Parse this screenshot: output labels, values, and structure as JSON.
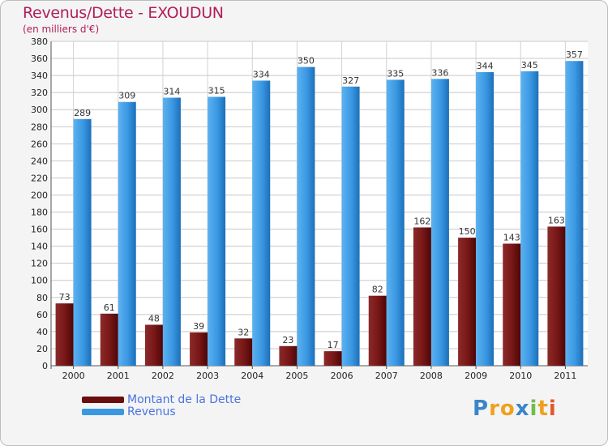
{
  "header": {
    "title": "Revenus/Dette - EXOUDUN",
    "subtitle": "(en milliers d'€)"
  },
  "chart_data": {
    "type": "bar",
    "title": "Revenus/Dette - EXOUDUN",
    "ylabel": "(en milliers d'€)",
    "xlabel": "",
    "ylim": [
      0,
      380
    ],
    "ytick_step": 20,
    "grid": true,
    "categories": [
      "2000",
      "2001",
      "2002",
      "2003",
      "2004",
      "2005",
      "2006",
      "2007",
      "2008",
      "2009",
      "2010",
      "2011"
    ],
    "series": [
      {
        "name": "Montant de la Dette",
        "color": "#7a1a1a",
        "values": [
          73,
          61,
          48,
          39,
          32,
          23,
          17,
          82,
          162,
          150,
          143,
          163
        ]
      },
      {
        "name": "Revenus",
        "color": "#3a97e2",
        "values": [
          289,
          309,
          314,
          315,
          334,
          350,
          327,
          335,
          336,
          344,
          345,
          357
        ]
      }
    ],
    "legend_position": "bottom-left"
  },
  "legend": {
    "items": [
      {
        "label": "Montant de la Dette",
        "color": "#6b0e0e"
      },
      {
        "label": "Revenus",
        "color": "#3a97e2"
      }
    ]
  },
  "logo": {
    "p": "P",
    "r": "r",
    "o": "o",
    "x": "x",
    "i1": "i",
    "t": "t",
    "i2": "i"
  }
}
